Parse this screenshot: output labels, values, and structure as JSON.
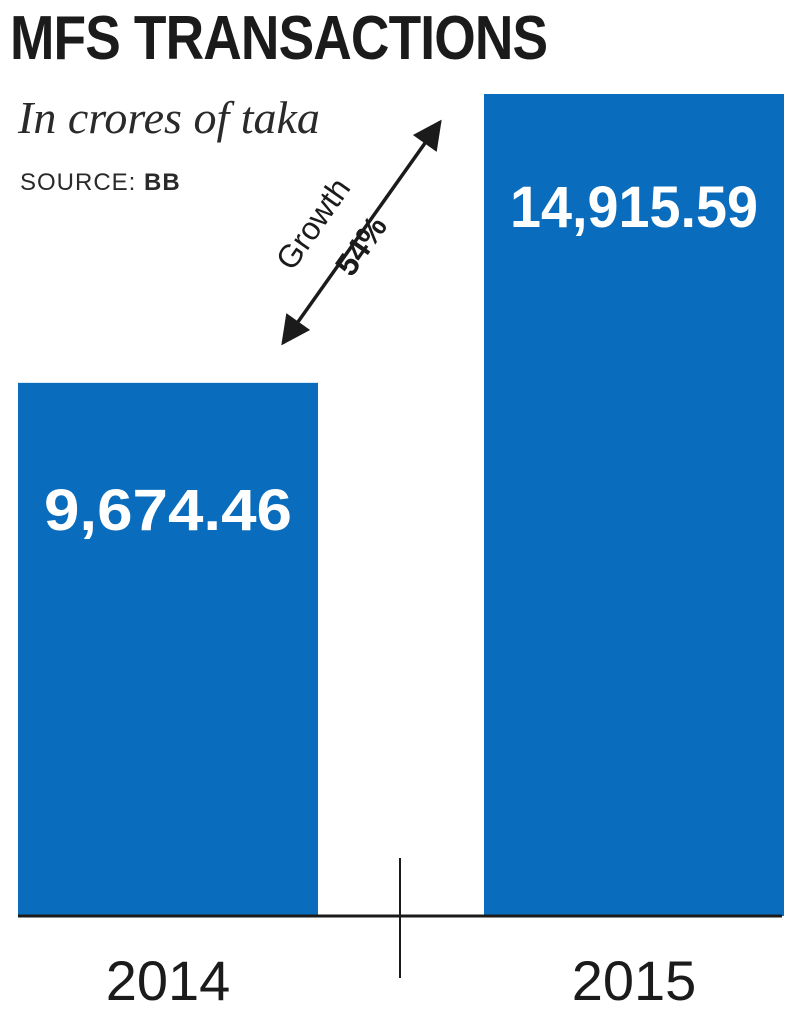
{
  "header": {
    "title": "MFS TRANSACTIONS",
    "subtitle": "In crores of taka",
    "source_label": "SOURCE:",
    "source_value": "BB"
  },
  "annotation": {
    "line1": "Growth",
    "line2": "54%"
  },
  "colors": {
    "bar": "#0a6cbc",
    "text": "#1b1b1b",
    "value_label": "#ffffff"
  },
  "chart_data": {
    "type": "bar",
    "title": "MFS TRANSACTIONS",
    "subtitle": "In crores of taka",
    "source": "BB",
    "categories": [
      "2014",
      "2015"
    ],
    "values": [
      9674.46,
      14915.59
    ],
    "value_labels": [
      "9,674.46",
      "14,915.59"
    ],
    "xlabel": "",
    "ylabel": "",
    "grid": false,
    "legend": "none",
    "annotations": [
      {
        "text": "Growth 54%",
        "from": "2014",
        "to": "2015"
      }
    ]
  }
}
